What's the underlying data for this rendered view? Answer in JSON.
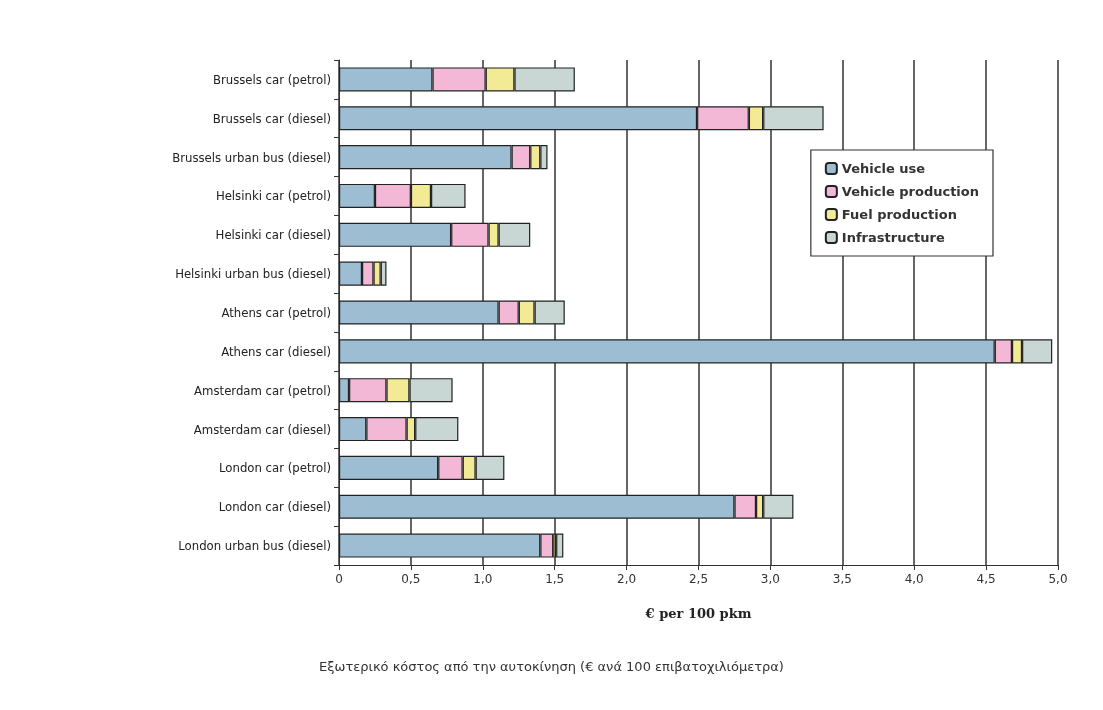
{
  "chart_data": {
    "type": "bar",
    "orientation": "horizontal",
    "stacked": true,
    "categories": [
      "Brussels car (petrol)",
      "Brussels car (diesel)",
      "Brussels urban bus (diesel)",
      "Helsinki car (petrol)",
      "Helsinki car (diesel)",
      "Helsinki urban bus (diesel)",
      "Athens car (petrol)",
      "Athens car (diesel)",
      "Amsterdam car (petrol)",
      "Amsterdam car (diesel)",
      "London car (petrol)",
      "London car (diesel)",
      "London urban bus (diesel)"
    ],
    "series": [
      {
        "name": "Vehicle use",
        "color": "#9dbdd2",
        "values": [
          0.65,
          2.49,
          1.2,
          0.25,
          0.78,
          0.16,
          1.11,
          4.56,
          0.07,
          0.19,
          0.69,
          2.75,
          1.4
        ]
      },
      {
        "name": "Vehicle production",
        "color": "#f2b8d6",
        "values": [
          0.37,
          0.36,
          0.13,
          0.25,
          0.26,
          0.08,
          0.14,
          0.12,
          0.26,
          0.28,
          0.17,
          0.15,
          0.09
        ]
      },
      {
        "name": "Fuel production",
        "color": "#f2ea94",
        "values": [
          0.2,
          0.1,
          0.07,
          0.14,
          0.07,
          0.05,
          0.11,
          0.07,
          0.16,
          0.06,
          0.09,
          0.05,
          0.02
        ]
      },
      {
        "name": "Infrastructure",
        "color": "#c8d6d4",
        "values": [
          0.42,
          0.42,
          0.05,
          0.24,
          0.22,
          0.04,
          0.21,
          0.21,
          0.3,
          0.3,
          0.2,
          0.21,
          0.05
        ]
      }
    ],
    "xlim": [
      0,
      5
    ],
    "xticks": [
      0,
      {
        "value": 0.5,
        "label": "0,5"
      },
      {
        "value": 1,
        "label": "1,0"
      },
      {
        "value": 1.5,
        "label": "1,5"
      },
      {
        "value": 2,
        "label": "2,0"
      },
      {
        "value": 2.5,
        "label": "2,5"
      },
      {
        "value": 3,
        "label": "3,0"
      },
      {
        "value": 3.5,
        "label": "3,5"
      },
      {
        "value": 4,
        "label": "4,0"
      },
      {
        "value": 4.5,
        "label": "4,5"
      },
      {
        "value": 5,
        "label": "5,0"
      }
    ],
    "xlabel": "€ per 100 pkm",
    "annotations": [
      "Εξωτερικό κόστος από την αυτοκίνηση (€ ανά 100 επιβατοχιλιόμετρα)"
    ],
    "grid": "x",
    "legend": "top right"
  }
}
